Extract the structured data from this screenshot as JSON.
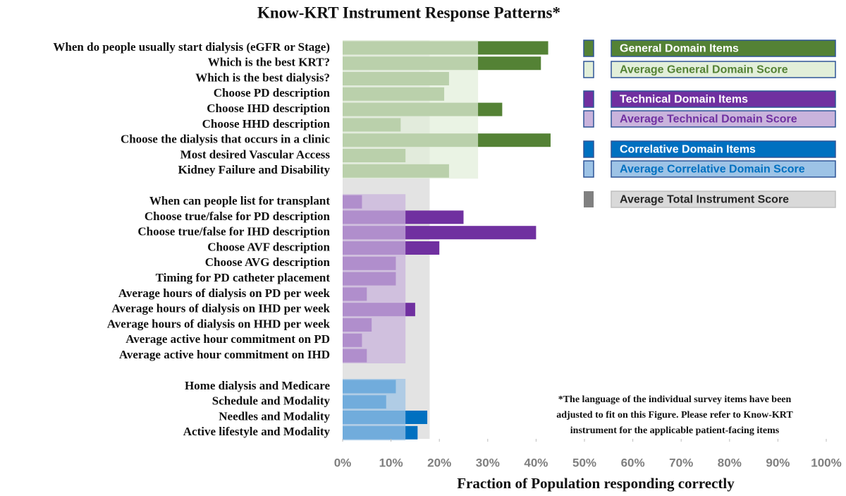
{
  "chart_data": {
    "type": "bar",
    "orientation": "horizontal",
    "title": "Know-KRT Instrument Response Patterns*",
    "xlabel": "Fraction of Population responding correctly",
    "xlim": [
      0,
      100
    ],
    "xticks": [
      {
        "value": 0,
        "label": "0%"
      },
      {
        "value": 10,
        "label": "10%"
      },
      {
        "value": 20,
        "label": "20%"
      },
      {
        "value": 30,
        "label": "30%"
      },
      {
        "value": 40,
        "label": "40%"
      },
      {
        "value": 50,
        "label": "50%"
      },
      {
        "value": 60,
        "label": "60%"
      },
      {
        "value": 70,
        "label": "70%"
      },
      {
        "value": 80,
        "label": "80%"
      },
      {
        "value": 90,
        "label": "90%"
      },
      {
        "value": 100,
        "label": "100%"
      }
    ],
    "groups": [
      {
        "name": "General Domain Items",
        "color": "#548235",
        "categories": [
          "When do people usually start dialysis (eGFR or Stage)",
          "Which is the best KRT?",
          "Which is the best dialysis?",
          "Choose PD description",
          "Choose IHD description",
          "Choose HHD description",
          "Choose the dialysis that occurs in a clinic",
          "Most desired Vascular Access",
          "Kidney Failure and Disability"
        ],
        "values": [
          42.5,
          41,
          22,
          21,
          33,
          12,
          43,
          13,
          22
        ],
        "average_name": "Average General Domain Score",
        "average": 28,
        "average_color": "#e2efd9"
      },
      {
        "name": "Technical Domain Items",
        "color": "#7030a0",
        "categories": [
          "When can people list for transplant",
          "Choose true/false for PD description",
          "Choose true/false for IHD description",
          "Choose AVF description",
          "Choose AVG description",
          "Timing for PD catheter placement",
          "Average hours of dialysis on PD per week",
          "Average hours of dialysis on IHD per week",
          "Average hours of dialysis on HHD per week",
          "Average active hour commitment on PD",
          "Average active hour commitment on IHD"
        ],
        "values": [
          4,
          25,
          40,
          20,
          11,
          11,
          5,
          15,
          6,
          4,
          5
        ],
        "average_name": "Average Technical Domain Score",
        "average": 13,
        "average_color": "#c9b3dc"
      },
      {
        "name": "Correlative Domain Items",
        "color": "#0070c0",
        "categories": [
          "Home dialysis and Medicare",
          "Schedule and Modality",
          "Needles and Modality",
          "Active lifestyle and Modality"
        ],
        "values": [
          11,
          9,
          17.5,
          15.5
        ],
        "average_name": "Average Correlative Domain Score",
        "average": 13,
        "average_color": "#9dc3e6"
      }
    ],
    "total_average": {
      "name": "Average Total Instrument Score",
      "value": 18,
      "color": "#808080"
    },
    "note": [
      "*The language of the individual survey items have been",
      "adjusted to fit on this Figure. Please refer to Know-KRT",
      "instrument for the applicable patient-facing items"
    ]
  }
}
